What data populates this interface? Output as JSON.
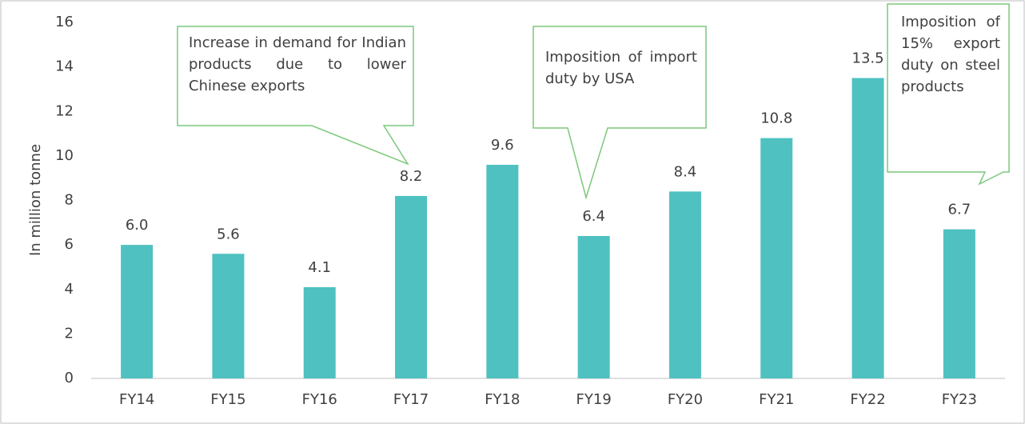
{
  "chart_data": {
    "type": "bar",
    "categories": [
      "FY14",
      "FY15",
      "FY16",
      "FY17",
      "FY18",
      "FY19",
      "FY20",
      "FY21",
      "FY22",
      "FY23"
    ],
    "values": [
      6.0,
      5.6,
      4.1,
      8.2,
      9.6,
      6.4,
      8.4,
      10.8,
      13.5,
      6.7
    ],
    "value_labels": [
      "6.0",
      "5.6",
      "4.1",
      "8.2",
      "9.6",
      "6.4",
      "8.4",
      "10.8",
      "13.5",
      "6.7"
    ],
    "color": "#4fc1c1",
    "ylim": [
      0,
      16
    ],
    "yticks": [
      0,
      2,
      4,
      6,
      8,
      10,
      12,
      14,
      16
    ],
    "y_label": "In million tonne",
    "annotations": [
      "Increase in demand for Indian products due to lower Chinese exports",
      "Imposition of import duty by USA",
      "Imposition of 15% export duty on steel products"
    ]
  }
}
